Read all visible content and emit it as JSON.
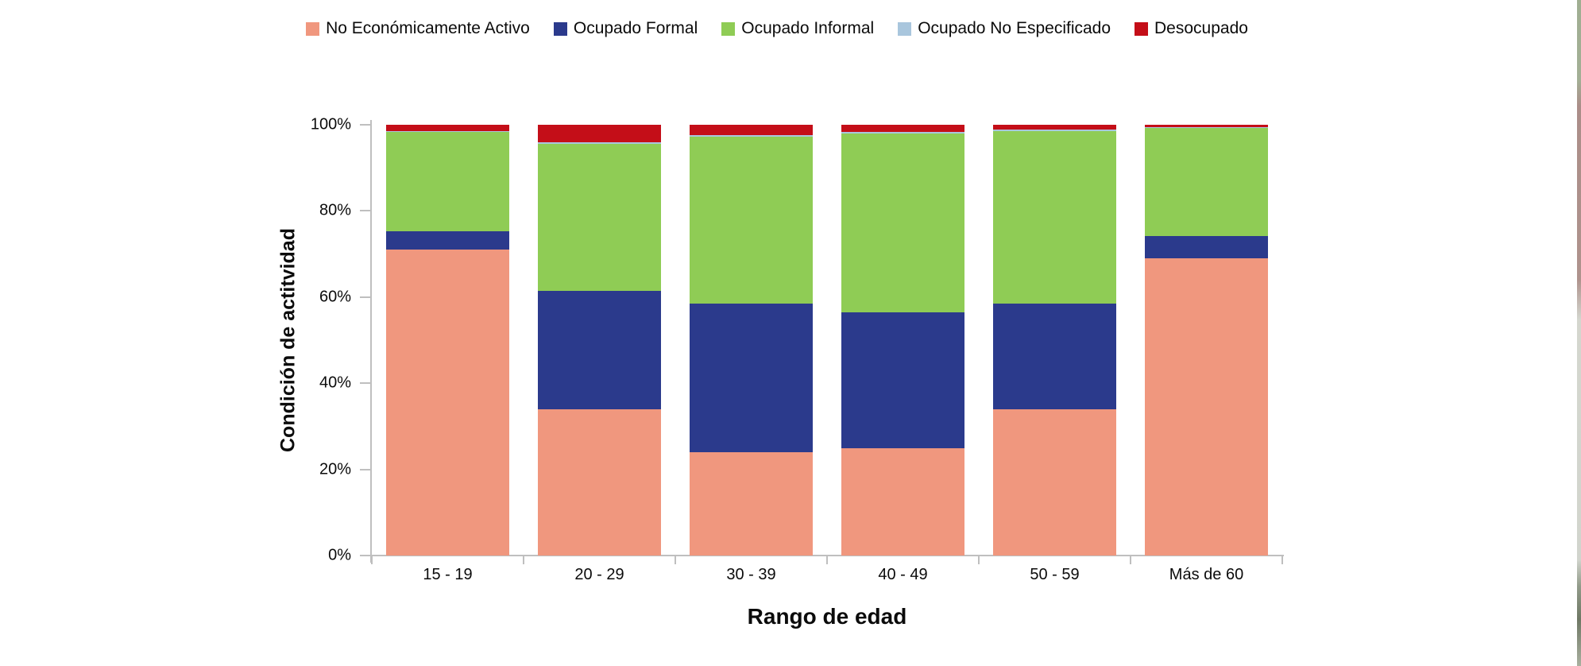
{
  "chart_data": {
    "type": "bar",
    "stacked": true,
    "percent_stacked": true,
    "title": "",
    "xlabel": "Rango de edad",
    "ylabel": "Condición de actitvidad",
    "categories": [
      "15 - 19",
      "20 - 29",
      "30 - 39",
      "40 - 49",
      "50 - 59",
      "Más de 60"
    ],
    "series": [
      {
        "name": "No Económicamente Activo",
        "color": "#F0977E",
        "values": [
          71.0,
          34.0,
          24.0,
          25.0,
          34.0,
          69.0
        ]
      },
      {
        "name": "Ocupado Formal",
        "color": "#2B3A8C",
        "values": [
          4.3,
          27.5,
          34.5,
          31.5,
          24.5,
          5.2
        ]
      },
      {
        "name": "Ocupado Informal",
        "color": "#8FCC55",
        "values": [
          23.0,
          34.0,
          38.8,
          41.4,
          40.0,
          25.1
        ]
      },
      {
        "name": "Ocupado No Especificado",
        "color": "#A9C6DD",
        "values": [
          0.2,
          0.5,
          0.4,
          0.4,
          0.4,
          0.1
        ]
      },
      {
        "name": "Desocupado",
        "color": "#C40E18",
        "values": [
          1.5,
          4.0,
          2.3,
          1.7,
          1.1,
          0.6
        ]
      }
    ],
    "yticks": [
      "0%",
      "20%",
      "40%",
      "60%",
      "80%",
      "100%"
    ],
    "ylim": [
      0,
      100
    ],
    "legend_position": "top",
    "grid": false,
    "axis_color": "#bfbfbf"
  }
}
